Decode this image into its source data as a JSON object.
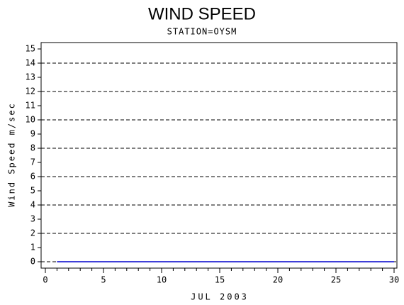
{
  "chart_data": {
    "type": "line",
    "title": "WIND SPEED",
    "subtitle": "STATION=OYSM",
    "x_label": "JUL 2003",
    "y_label": "Wind Speed m/sec",
    "x": [
      1,
      2,
      3,
      4,
      5,
      6,
      7,
      8,
      9,
      10,
      11,
      12,
      13,
      14,
      15,
      16,
      17,
      18,
      19,
      20,
      21,
      22,
      23,
      24,
      25,
      26,
      27,
      28,
      29,
      30
    ],
    "series": [
      {
        "name": "Wind Speed",
        "color": "#0000cc",
        "values": [
          0,
          0,
          0,
          0,
          0,
          0,
          0,
          0,
          0,
          0,
          0,
          0,
          0,
          0,
          0,
          0,
          0,
          0,
          0,
          0,
          0,
          0,
          0,
          0,
          0,
          0,
          0,
          0,
          0,
          0
        ]
      }
    ],
    "xlim": [
      0,
      30
    ],
    "xticks": [
      0,
      5,
      10,
      15,
      20,
      25,
      30
    ],
    "ylim": [
      0,
      15
    ],
    "yticks": [
      0,
      1,
      2,
      3,
      4,
      5,
      6,
      7,
      8,
      9,
      10,
      11,
      12,
      13,
      14,
      15
    ],
    "ygrid": [
      0,
      2,
      4,
      6,
      8,
      10,
      12,
      14
    ],
    "grid_style": "dashed"
  }
}
